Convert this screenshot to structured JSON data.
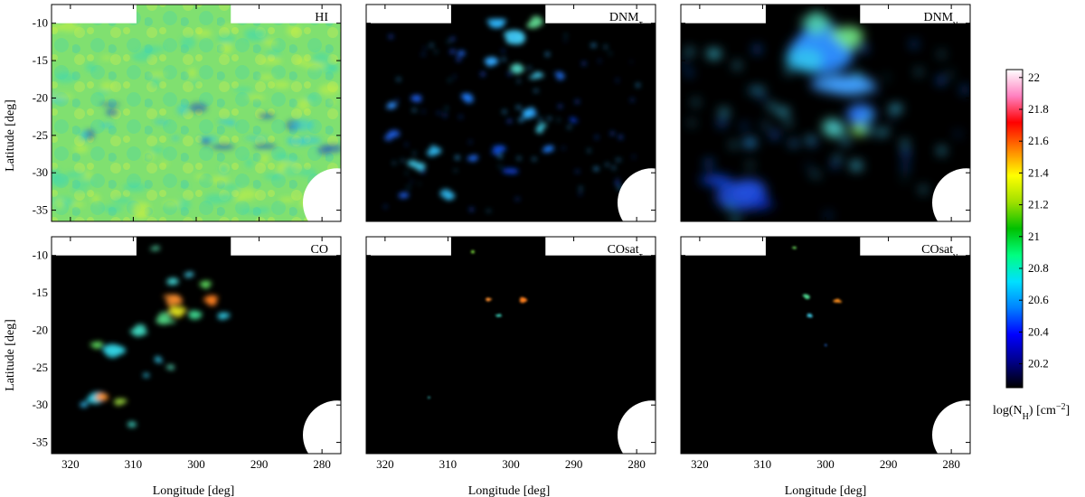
{
  "chart_data": {
    "type": "heatmap",
    "xlabel": "Longitude [deg]",
    "ylabel": "Latitude [deg]",
    "xlim": [
      323,
      277
    ],
    "ylim": [
      -36.5,
      -7.5
    ],
    "xticks": [
      320,
      310,
      300,
      290,
      280
    ],
    "yticks": [
      -10,
      -15,
      -20,
      -25,
      -30,
      -35
    ],
    "colorbar": {
      "label": "log(N",
      "label_sub": "H",
      "label_tail": ") [cm",
      "label_sup": "−2",
      "label_end": "]",
      "range": [
        20.05,
        22.05
      ],
      "ticks": [
        "22",
        "21.8",
        "21.6",
        "21.4",
        "21.2",
        "21",
        "20.8",
        "20.6",
        "20.4",
        "20.2"
      ],
      "tick_values": [
        22,
        21.8,
        21.6,
        21.4,
        21.2,
        21,
        20.8,
        20.6,
        20.4,
        20.2
      ],
      "colors": [
        "#000000",
        "#00008b",
        "#0000ff",
        "#0080ff",
        "#00e0ff",
        "#00ff80",
        "#00c000",
        "#a0e000",
        "#ffff00",
        "#ff8000",
        "#ff0000",
        "#ff80c0",
        "#ffffff"
      ]
    },
    "panels": [
      {
        "title": "HI",
        "sub": ""
      },
      {
        "title": "DNM",
        "sub": "τ"
      },
      {
        "title": "DNM",
        "sub": "γ"
      },
      {
        "title": "CO",
        "sub": ""
      },
      {
        "title": "COsat",
        "sub": "τ"
      },
      {
        "title": "COsat",
        "sub": "γ"
      }
    ]
  }
}
